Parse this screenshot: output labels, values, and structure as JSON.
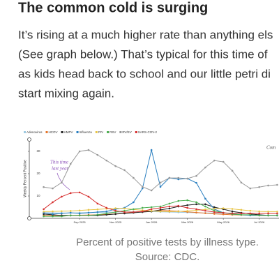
{
  "heading": "The common cold is surging",
  "paragraph_lines": [
    "It’s rising at a much higher rate than anything els",
    "(See graph below.) That’s typical for this time of",
    "as kids head back to school and our little petri di",
    "start mixing again."
  ],
  "chart_data": {
    "type": "line",
    "ylabel": "Weekly Percent Positive",
    "annotations": [
      "This time",
      "last year",
      "Com"
    ],
    "x": [
      0,
      0.5,
      1,
      1.5,
      2,
      2.5,
      3,
      3.5,
      4,
      4.5,
      5,
      5.5,
      6,
      6.5,
      7,
      7.5,
      8,
      8.5,
      9,
      9.5,
      10,
      10.5,
      11,
      11.5,
      12,
      12.5,
      13
    ],
    "xlim": [
      -0.8,
      13.1
    ],
    "xticks": [
      {
        "value": 2,
        "label": "Sep 2025"
      },
      {
        "value": 4,
        "label": "Nov 2025"
      },
      {
        "value": 6,
        "label": "Jan 2026"
      },
      {
        "value": 8,
        "label": "Mar 2026"
      },
      {
        "value": 10,
        "label": "May 2026"
      },
      {
        "value": 12,
        "label": "Jul 2026"
      }
    ],
    "ylim": [
      0,
      35
    ],
    "yticks": [
      10,
      20,
      30
    ],
    "legend": "top-left",
    "series": [
      {
        "name": "Adenovirus",
        "color": "#9ecae1",
        "values": [
          2.5,
          2.5,
          2.4,
          2.4,
          2.5,
          2.6,
          2.6,
          2.7,
          2.8,
          2.8,
          2.9,
          3,
          3,
          2.9,
          2.8,
          2.7,
          2.6,
          2.5,
          2.4,
          2.4,
          2.3,
          2.3,
          2.3,
          2.2,
          2.2,
          2.2,
          2.2
        ]
      },
      {
        "name": "HCOV",
        "color": "#e6752a",
        "values": [
          1.3,
          1.3,
          1.3,
          1.3,
          1.4,
          1.5,
          1.6,
          1.8,
          2,
          2.3,
          2.6,
          3,
          3.3,
          3.5,
          3.4,
          3.2,
          2.9,
          2.6,
          2.3,
          2,
          1.8,
          1.6,
          1.5,
          1.4,
          1.3,
          1.3,
          1.3
        ]
      },
      {
        "name": "HMPV",
        "color": "#222222",
        "values": [
          1.9,
          1.6,
          1.3,
          1.3,
          1.3,
          1.3,
          1.3,
          1.6,
          1.9,
          2.2,
          2.5,
          2.8,
          3.1,
          3.8,
          4.4,
          5.3,
          5.9,
          6.3,
          6.3,
          5,
          4.1,
          3.1,
          2.5,
          1.9,
          1.6,
          1.3,
          1.3
        ]
      },
      {
        "name": "Influenza",
        "color": "#2a7fc0",
        "values": [
          2.5,
          1.9,
          2.2,
          2.5,
          2.2,
          2.5,
          2.8,
          3.1,
          4.1,
          4.7,
          7.2,
          13.4,
          30.6,
          14.1,
          18.1,
          17.5,
          17.8,
          15.9,
          8.8,
          4.1,
          2.5,
          1.9,
          1.6,
          1.3,
          1.3,
          1.3,
          1.3
        ]
      },
      {
        "name": "PIV",
        "color": "#e8c547",
        "values": [
          3,
          3.1,
          3.2,
          3.3,
          3.5,
          3.8,
          4,
          4.3,
          4.5,
          4.4,
          4,
          3.6,
          3.3,
          3.1,
          3,
          3.1,
          3.3,
          3.6,
          4,
          4.3,
          4.5,
          4.2,
          3.8,
          3.4,
          3.1,
          3,
          3
        ]
      },
      {
        "name": "RSV",
        "color": "#4caf50",
        "values": [
          0.9,
          0.9,
          0.9,
          1.3,
          1.3,
          1.3,
          1.6,
          2.2,
          2.8,
          3.4,
          4.1,
          4.7,
          5,
          5.3,
          6.6,
          7.8,
          8.1,
          7.2,
          5.3,
          3.4,
          2.5,
          1.9,
          1.6,
          1.6,
          1.3,
          1.3,
          1.3
        ]
      },
      {
        "name": "RV/EV",
        "color": "#999999",
        "values": [
          14,
          13.4,
          16,
          24.4,
          30,
          30.6,
          28.4,
          25.9,
          23.4,
          21.6,
          18.1,
          14.1,
          12.5,
          16,
          18.1,
          18.1,
          17.8,
          19,
          22.8,
          25.9,
          25.3,
          21.3,
          16,
          13.4,
          14,
          14.7,
          15
        ]
      },
      {
        "name": "SARS-COV-2",
        "color": "#d62f2f",
        "values": [
          4.1,
          7.2,
          9.7,
          11.3,
          11.6,
          9.7,
          6.6,
          4.7,
          3.4,
          2.8,
          2.8,
          3.1,
          4.1,
          4.7,
          5.3,
          5.6,
          4.7,
          4.1,
          3.4,
          2.8,
          2.5,
          2.2,
          2.2,
          2.2,
          2.2,
          2.2,
          2.2
        ]
      }
    ]
  },
  "caption_lines": [
    "Percent of positive tests by illness type.",
    "Source: CDC."
  ]
}
